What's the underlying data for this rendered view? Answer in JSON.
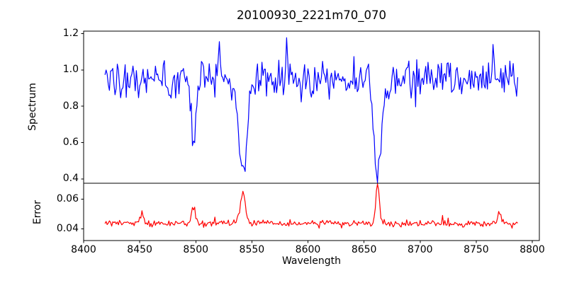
{
  "figure": {
    "background": "#ffffff",
    "axis_color": "#000000"
  },
  "chart_data": {
    "type": "line",
    "title": "20100930_2221m70_070",
    "xlabel": "Wavelength",
    "xlim": [
      8400,
      8806.3
    ],
    "x_start": 8419,
    "x_end": 8787,
    "x_step": 1.0,
    "xticks": [
      8400,
      8450,
      8500,
      8550,
      8600,
      8650,
      8700,
      8750,
      8800
    ],
    "xtick_labels": [
      "8400",
      "8450",
      "8500",
      "8550",
      "8600",
      "8650",
      "8700",
      "8750",
      "8800"
    ],
    "panels": [
      {
        "name": "spectrum",
        "ylabel": "Spectrum",
        "color": "#0000ff",
        "ylim": [
          0.3766,
          1.2136
        ],
        "yticks": [
          1.2,
          1.0,
          0.8,
          0.6,
          0.4
        ],
        "ytick_labels": [
          "1.2",
          "1.0",
          "0.8",
          "0.6",
          "0.4"
        ],
        "continuum": 0.95,
        "noise_sigma": 0.052,
        "seed": 20100930,
        "outlier_prob": 0.012,
        "outlier_scale": 2.2,
        "absorption_lines": [
          {
            "center": 8498.0,
            "depth": 0.36,
            "sigma": 2.2
          },
          {
            "center": 8542.1,
            "depth": 0.49,
            "sigma": 3.6
          },
          {
            "center": 8662.1,
            "depth": 0.53,
            "sigma": 3.4
          }
        ],
        "emission_spikes": [
          {
            "center": 8521,
            "height": 0.2,
            "sigma": 0.8
          },
          {
            "center": 8581,
            "height": 0.16,
            "sigma": 0.7
          },
          {
            "center": 8765,
            "height": 0.21,
            "sigma": 0.8
          }
        ]
      },
      {
        "name": "error",
        "ylabel": "Error",
        "color": "#ff0000",
        "ylim": [
          0.0322,
          0.0706
        ],
        "yticks": [
          0.06,
          0.04
        ],
        "ytick_labels": [
          "0.06",
          "0.04"
        ],
        "baseline": 0.0437,
        "noise_sigma": 0.0011,
        "seed": 70,
        "outlier_prob": 0.03,
        "outlier_scale": 2.6,
        "spikes": [
          {
            "center": 8452,
            "height": 0.0085,
            "sigma": 1.2
          },
          {
            "center": 8498,
            "height": 0.0105,
            "sigma": 2.0
          },
          {
            "center": 8542,
            "height": 0.0205,
            "sigma": 2.2
          },
          {
            "center": 8662,
            "height": 0.0265,
            "sigma": 1.6
          },
          {
            "center": 8771,
            "height": 0.006,
            "sigma": 1.5
          }
        ]
      }
    ]
  }
}
